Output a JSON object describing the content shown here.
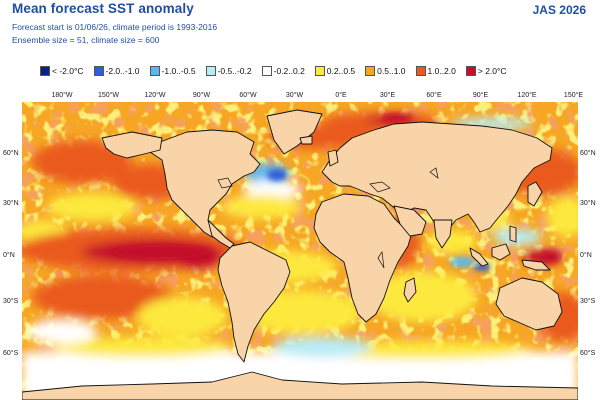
{
  "header": {
    "title": "Mean forecast SST anomaly",
    "season": "JAS 2026",
    "line1": "Forecast start is 01/06/26, climate period is 1993-2016",
    "line2": "Ensemble size = 51, climate size = 600"
  },
  "legend": [
    {
      "label": "< -2.0°C",
      "color": "#0b1f8c"
    },
    {
      "label": "-2.0..-1.0",
      "color": "#2f5fd8"
    },
    {
      "label": "-1.0..-0.5",
      "color": "#59b8f0"
    },
    {
      "label": "-0.5..-0.2",
      "color": "#b8ecf7"
    },
    {
      "label": "-0.2..0.2",
      "color": "#ffffff"
    },
    {
      "label": "0.2..0.5",
      "color": "#fde93d"
    },
    {
      "label": "0.5..1.0",
      "color": "#f6a623"
    },
    {
      "label": "1.0..2.0",
      "color": "#ea5a1c"
    },
    {
      "label": "> 2.0°C",
      "color": "#c4102a"
    }
  ],
  "axes": {
    "lon_labels": [
      "180°W",
      "150°W",
      "120°W",
      "90°W",
      "60°W",
      "30°W",
      "0°E",
      "30°E",
      "60°E",
      "90°E",
      "120°E",
      "150°E"
    ],
    "lat_labels": [
      "60°N",
      "30°N",
      "0°N",
      "30°S",
      "60°S"
    ]
  },
  "colors": {
    "land": "#f9d4a8",
    "coast": "#111111",
    "ocean_base": "#f6a623"
  }
}
